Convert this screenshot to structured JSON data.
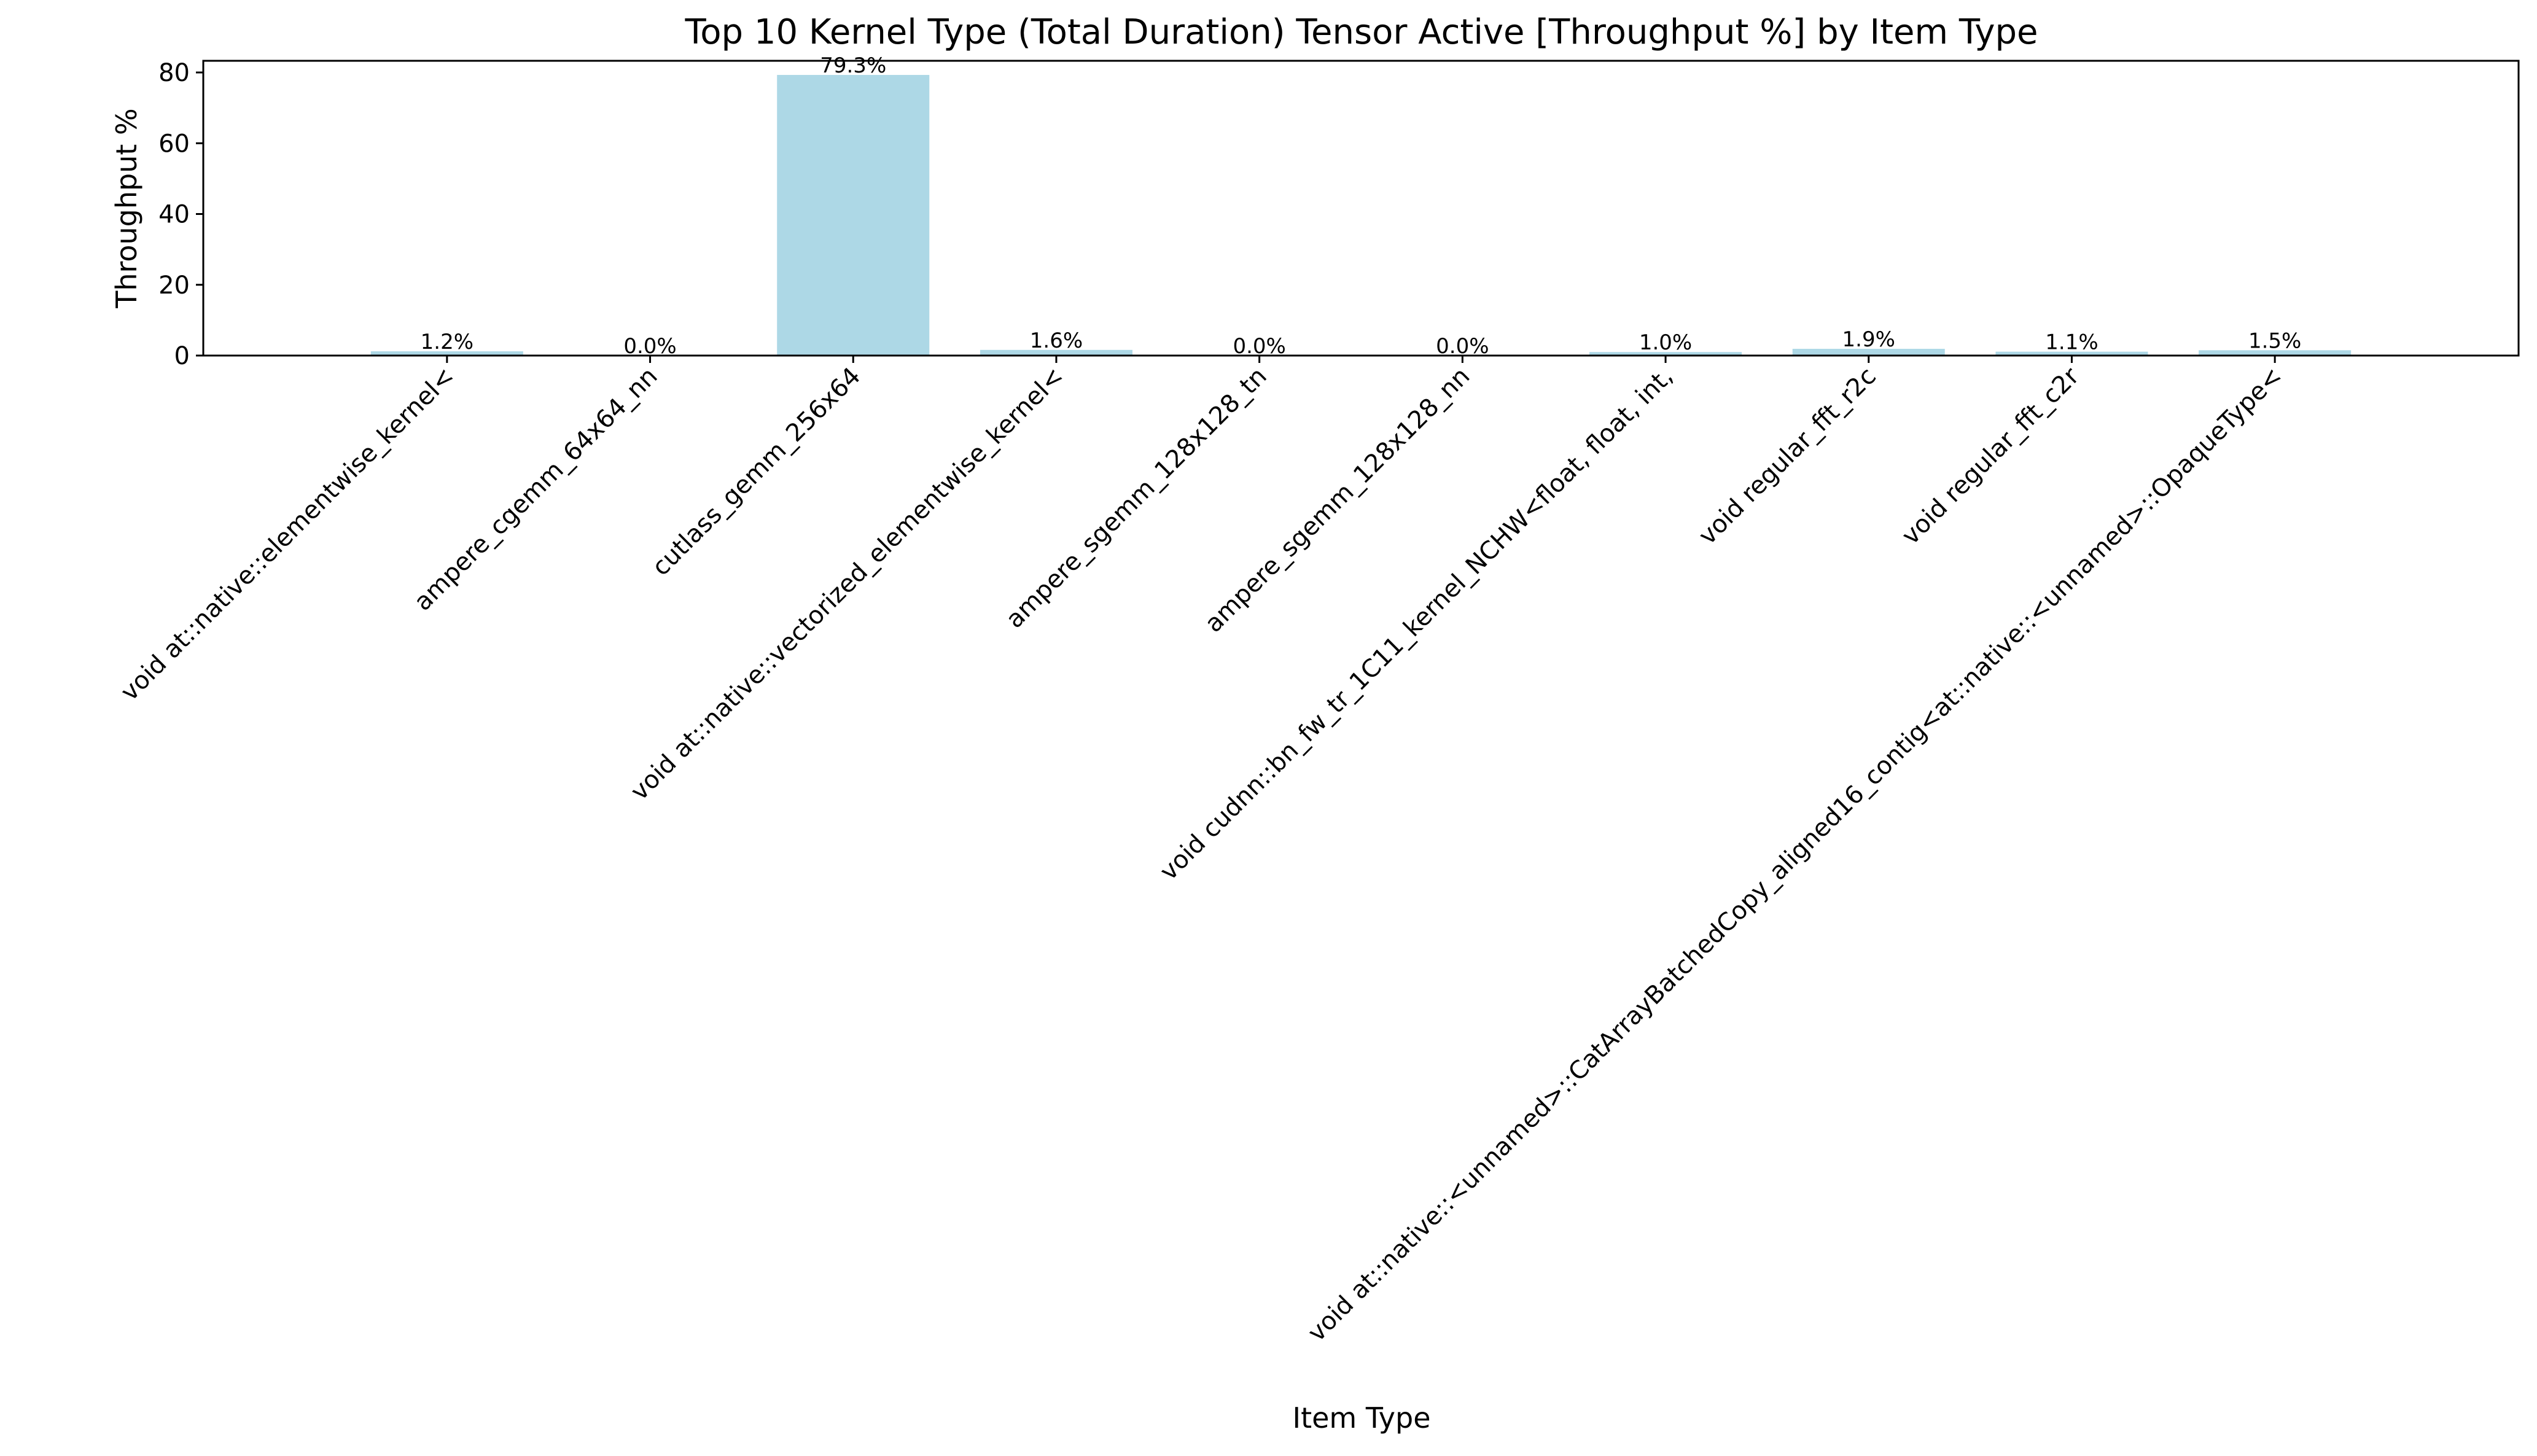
{
  "chart_data": {
    "type": "bar",
    "title": "Top 10 Kernel Type (Total Duration) Tensor Active [Throughput %] by Item Type",
    "xlabel": "Item Type",
    "ylabel": "Throughput %",
    "ylim": [
      0,
      83.3
    ],
    "yticks": [
      0,
      20,
      40,
      60,
      80
    ],
    "grid": false,
    "legend": "none",
    "bar_color": "#add8e6",
    "categories": [
      "void at::native::elementwise_kernel<",
      "ampere_cgemm_64x64_nn",
      "cutlass_gemm_256x64",
      "void at::native::vectorized_elementwise_kernel<",
      "ampere_sgemm_128x128_tn",
      "ampere_sgemm_128x128_nn",
      "void cudnn::bn_fw_tr_1C11_kernel_NCHW<float, float, int,",
      "void regular_fft_r2c",
      "void regular_fft_c2r",
      "void at::native::<unnamed>::CatArrayBatchedCopy_aligned16_contig<at::native::<unnamed>::OpaqueType<"
    ],
    "values": [
      1.2,
      0.0,
      79.3,
      1.6,
      0.0,
      0.0,
      1.0,
      1.9,
      1.1,
      1.5
    ],
    "data_labels": [
      "1.2%",
      "0.0%",
      "79.3%",
      "1.6%",
      "0.0%",
      "0.0%",
      "1.0%",
      "1.9%",
      "1.1%",
      "1.5%"
    ]
  }
}
